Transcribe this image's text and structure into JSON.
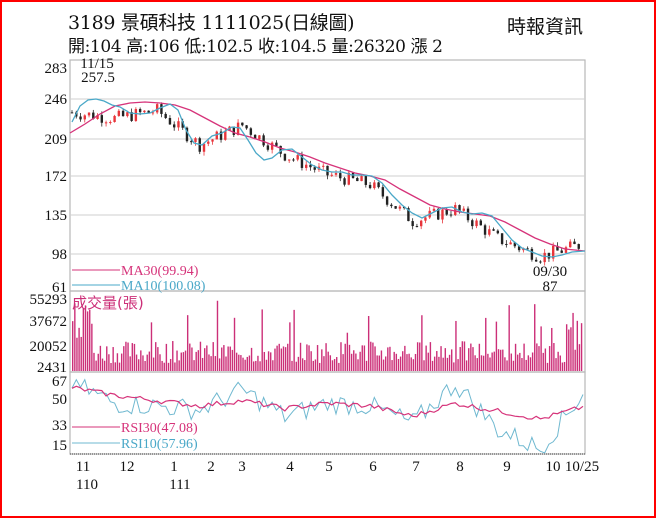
{
  "header": {
    "title": "3189  景碩科技 1111025(日線圖)",
    "ohlc": "開:104 高:106 低:102.5 收:104.5 量:26320 漲 2",
    "source": "時報資訊"
  },
  "colors": {
    "frame": "#ff0000",
    "up_candle": "#e8353b",
    "down_candle": "#222222",
    "ma30": "#d6337a",
    "ma10": "#4aa8c8",
    "volume": "#cc2f78",
    "rsi30": "#d6337a",
    "rsi10": "#6fb8d0",
    "grid": "#c8c8c8"
  },
  "chart_data": [
    {
      "type": "candlestick",
      "title": "3189 景碩科技 1111025(日線圖)",
      "ylabel": "Price",
      "yticks": [
        283,
        246,
        209,
        172,
        135,
        98,
        61
      ],
      "ylim": [
        61,
        283
      ],
      "xticks": [
        "11",
        "12",
        "1",
        "2",
        "3",
        "4",
        "5",
        "6",
        "7",
        "8",
        "9",
        "10",
        "10/25"
      ],
      "xticks_year": [
        {
          "at": "11",
          "label": "110"
        },
        {
          "at": "1",
          "label": "111"
        }
      ],
      "grid": true,
      "annotations": [
        {
          "date": "11/15",
          "value": 257.5,
          "label": "11/15\n257.5",
          "type": "high"
        },
        {
          "date": "09/30",
          "value": 87,
          "label": "09/30\n87",
          "type": "low"
        }
      ],
      "legend": [
        {
          "name": "MA30",
          "value": "99.94",
          "label": "MA30(99.94)"
        },
        {
          "name": "MA10",
          "value": "100.08",
          "label": "MA10(100.08)"
        }
      ],
      "close_series_approx": {
        "x": [
          "11",
          "12",
          "1",
          "2",
          "3",
          "4",
          "5",
          "6",
          "7",
          "8",
          "9",
          "10",
          "10/25"
        ],
        "values": [
          238,
          232,
          240,
          205,
          225,
          195,
          175,
          165,
          128,
          140,
          110,
          92,
          104.5
        ]
      },
      "ma30_approx": [
        212,
        240,
        236,
        228,
        218,
        200,
        185,
        170,
        150,
        140,
        125,
        103,
        99.94
      ],
      "ma10_approx": [
        222,
        238,
        234,
        210,
        220,
        192,
        172,
        165,
        135,
        135,
        112,
        95,
        100.08
      ]
    },
    {
      "type": "bar",
      "title": "成交量(張)",
      "ylabel": "成交量(張)",
      "yticks": [
        55293,
        37672,
        20052,
        2431
      ],
      "ylim": [
        0,
        55293
      ],
      "xticks": [
        "11",
        "12",
        "1",
        "2",
        "3",
        "4",
        "5",
        "6",
        "7",
        "8",
        "9",
        "10",
        "10/25"
      ],
      "last_value": 26320,
      "peak_approx": {
        "date": "11",
        "value": 52000
      }
    },
    {
      "type": "line",
      "title": "RSI",
      "yticks": [
        67,
        50,
        33,
        15
      ],
      "ylim": [
        10,
        70
      ],
      "xticks": [
        "11",
        "12",
        "1",
        "2",
        "3",
        "4",
        "5",
        "6",
        "7",
        "8",
        "9",
        "10",
        "10/25"
      ],
      "series": [
        {
          "name": "RSI30",
          "label": "RSI30(47.08)",
          "last": 47.08,
          "values": [
            62,
            56,
            52,
            48,
            52,
            46,
            50,
            48,
            40,
            50,
            44,
            38,
            47.08
          ]
        },
        {
          "name": "RSI10",
          "label": "RSI10(57.96)",
          "last": 57.96,
          "values": [
            66,
            50,
            48,
            45,
            60,
            40,
            50,
            48,
            35,
            65,
            30,
            15,
            57.96
          ]
        }
      ]
    }
  ],
  "panels": {
    "price": {
      "yticks": [
        "283",
        "246",
        "209",
        "172",
        "135",
        "98",
        "61"
      ],
      "high_date": "11/15",
      "high_value": "257.5",
      "low_date": "09/30",
      "low_value": "87",
      "legend_ma30": "MA30(99.94)",
      "legend_ma10": "MA10(100.08)"
    },
    "volume": {
      "title": "成交量(張)",
      "yticks": [
        "55293",
        "37672",
        "20052",
        "2431"
      ]
    },
    "rsi": {
      "yticks": [
        "67",
        "50",
        "33",
        "15"
      ],
      "legend_rsi30": "RSI30(47.08)",
      "legend_rsi10": "RSI10(57.96)"
    },
    "xaxis": {
      "ticks": [
        "11",
        "12",
        "1",
        "2",
        "3",
        "4",
        "5",
        "6",
        "7",
        "8",
        "9",
        "10",
        "10/25"
      ],
      "years": [
        "110",
        "111"
      ]
    }
  }
}
